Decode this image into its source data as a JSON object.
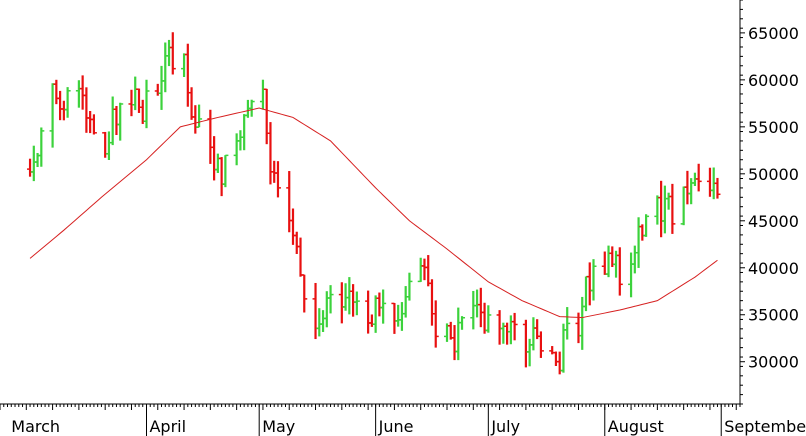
{
  "chart_data": {
    "type": "ohlc",
    "title": "",
    "xlabel": "",
    "ylabel": "",
    "ylim": [
      25500,
      68500
    ],
    "yticks": [
      30000,
      35000,
      40000,
      45000,
      50000,
      55000,
      60000,
      65000
    ],
    "ytick_labels": [
      "30000",
      "35000",
      "40000",
      "45000",
      "50000",
      "55000",
      "60000",
      "65000"
    ],
    "x_visible_range": [
      "2022-03-01",
      "2022-09-01"
    ],
    "month_ticks": [
      {
        "date": "2022-04-01",
        "label": "April"
      },
      {
        "date": "2022-05-01",
        "label": "May"
      },
      {
        "date": "2022-06-01",
        "label": "June"
      },
      {
        "date": "2022-07-01",
        "label": "July"
      },
      {
        "date": "2022-08-01",
        "label": "August"
      },
      {
        "date": "2022-09-01",
        "label": "September"
      }
    ],
    "cut_label": {
      "date": "2022-03-01",
      "label": "March"
    },
    "up_color": "#3cd23c",
    "down_color": "#e81010",
    "ma_color": "#d62020",
    "grid": false,
    "axis_side": "right",
    "price_anchors": [
      [
        "2022-03-01",
        50500
      ],
      [
        "2022-03-04",
        55000
      ],
      [
        "2022-03-07",
        59500
      ],
      [
        "2022-03-10",
        57500
      ],
      [
        "2022-03-14",
        58500
      ],
      [
        "2022-03-17",
        55500
      ],
      [
        "2022-03-21",
        53000
      ],
      [
        "2022-03-24",
        56500
      ],
      [
        "2022-03-28",
        59000
      ],
      [
        "2022-03-31",
        57000
      ],
      [
        "2022-04-04",
        58500
      ],
      [
        "2022-04-07",
        63000
      ],
      [
        "2022-04-11",
        62000
      ],
      [
        "2022-04-13",
        57000
      ],
      [
        "2022-04-15",
        56000
      ],
      [
        "2022-04-18",
        52000
      ],
      [
        "2022-04-21",
        49500
      ],
      [
        "2022-04-25",
        53000
      ],
      [
        "2022-04-28",
        57000
      ],
      [
        "2022-05-02",
        57500
      ],
      [
        "2022-05-04",
        52000
      ],
      [
        "2022-05-06",
        48500
      ],
      [
        "2022-05-09",
        45000
      ],
      [
        "2022-05-11",
        42000
      ],
      [
        "2022-05-13",
        36000
      ],
      [
        "2022-05-16",
        33000
      ],
      [
        "2022-05-19",
        37500
      ],
      [
        "2022-05-23",
        35000
      ],
      [
        "2022-05-27",
        37000
      ],
      [
        "2022-05-31",
        35500
      ],
      [
        "2022-06-03",
        37500
      ],
      [
        "2022-06-07",
        35500
      ],
      [
        "2022-06-10",
        38500
      ],
      [
        "2022-06-13",
        41000
      ],
      [
        "2022-06-15",
        37500
      ],
      [
        "2022-06-17",
        34000
      ],
      [
        "2022-06-21",
        31500
      ],
      [
        "2022-06-24",
        34000
      ],
      [
        "2022-06-28",
        35000
      ],
      [
        "2022-07-01",
        33500
      ],
      [
        "2022-07-05",
        34000
      ],
      [
        "2022-07-08",
        33500
      ],
      [
        "2022-07-12",
        32500
      ],
      [
        "2022-07-15",
        32000
      ],
      [
        "2022-07-18",
        31500
      ],
      [
        "2022-07-20",
        30500
      ],
      [
        "2022-07-22",
        33000
      ],
      [
        "2022-07-25",
        34500
      ],
      [
        "2022-07-27",
        38500
      ],
      [
        "2022-07-29",
        40000
      ],
      [
        "2022-08-02",
        41000
      ],
      [
        "2022-08-05",
        39000
      ],
      [
        "2022-08-08",
        42000
      ],
      [
        "2022-08-11",
        44500
      ],
      [
        "2022-08-15",
        46500
      ],
      [
        "2022-08-18",
        46000
      ],
      [
        "2022-08-22",
        47000
      ],
      [
        "2022-08-25",
        49000
      ],
      [
        "2022-08-29",
        49000
      ],
      [
        "2022-08-31",
        47000
      ]
    ],
    "moving_average": [
      [
        "2022-03-01",
        41000
      ],
      [
        "2022-03-10",
        44000
      ],
      [
        "2022-03-20",
        47500
      ],
      [
        "2022-04-01",
        51500
      ],
      [
        "2022-04-10",
        55000
      ],
      [
        "2022-04-20",
        56000
      ],
      [
        "2022-05-01",
        57000
      ],
      [
        "2022-05-10",
        56000
      ],
      [
        "2022-05-20",
        53500
      ],
      [
        "2022-06-01",
        48500
      ],
      [
        "2022-06-10",
        45000
      ],
      [
        "2022-06-20",
        42000
      ],
      [
        "2022-07-01",
        38500
      ],
      [
        "2022-07-10",
        36500
      ],
      [
        "2022-07-20",
        34800
      ],
      [
        "2022-07-26",
        34700
      ],
      [
        "2022-08-05",
        35500
      ],
      [
        "2022-08-15",
        36500
      ],
      [
        "2022-08-25",
        39000
      ],
      [
        "2022-08-31",
        40800
      ]
    ]
  }
}
